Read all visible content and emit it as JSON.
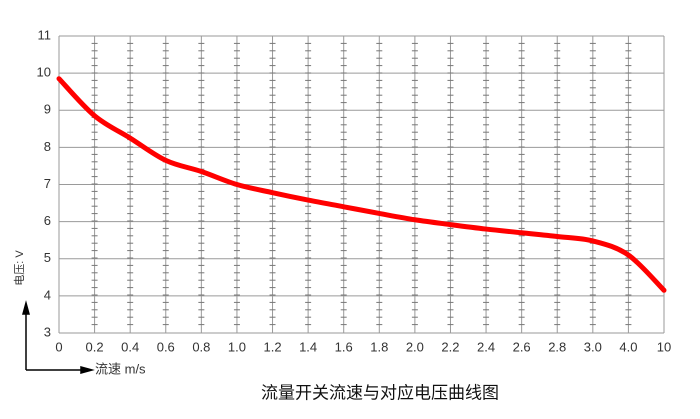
{
  "chart_data": {
    "type": "line",
    "title": "流量开关流速与对应电压曲线图",
    "x_label": "流速 m/s",
    "y_label": "电压: V",
    "categories": [
      "0",
      "0.2",
      "0.4",
      "0.6",
      "0.8",
      "1.0",
      "1.2",
      "1.4",
      "1.6",
      "1.8",
      "2.0",
      "2.2",
      "2.4",
      "2.6",
      "2.8",
      "3.0",
      "4.0",
      "10"
    ],
    "series": [
      {
        "name": "电压",
        "color": "#ff0000",
        "values": [
          9.85,
          8.85,
          8.25,
          7.65,
          7.35,
          7.0,
          6.78,
          6.58,
          6.4,
          6.22,
          6.05,
          5.92,
          5.8,
          5.7,
          5.6,
          5.48,
          5.1,
          4.15
        ]
      }
    ],
    "ylim": [
      3,
      11
    ],
    "yticks": [
      3,
      4,
      5,
      6,
      7,
      8,
      9,
      10,
      11
    ],
    "grid": true
  }
}
